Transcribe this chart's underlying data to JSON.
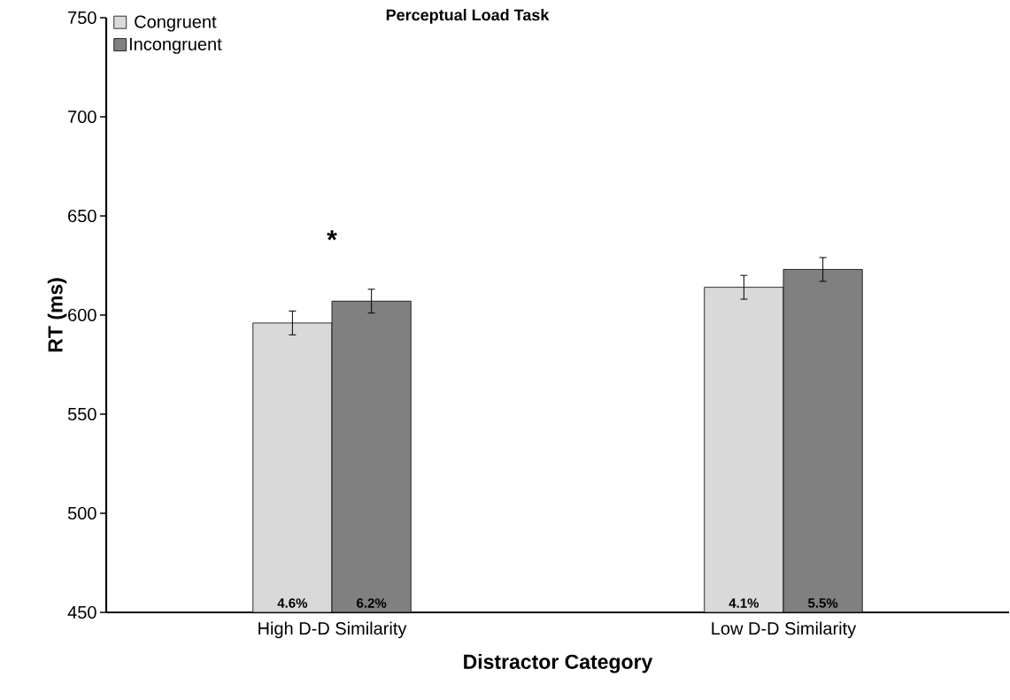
{
  "chart_data": {
    "type": "bar",
    "title": "Perceptual Load Task",
    "xlabel": "Distractor Category",
    "ylabel": "RT (ms)",
    "categories": [
      "High D-D Similarity",
      "Low D-D Similarity"
    ],
    "series": [
      {
        "name": "Congruent",
        "color": "#d9d9d9",
        "values": [
          596,
          614
        ],
        "errors": [
          6,
          6
        ]
      },
      {
        "name": "Incongruent",
        "color": "#808080",
        "values": [
          607,
          623
        ],
        "errors": [
          6,
          6
        ]
      }
    ],
    "annotations": [
      "*",
      "4.6%",
      "6.2%",
      "4.1%",
      "5.5%"
    ],
    "ylim": [
      450,
      750
    ],
    "yticks": [
      450,
      500,
      550,
      600,
      650,
      700,
      750
    ],
    "grid": false,
    "legend": "top left"
  }
}
